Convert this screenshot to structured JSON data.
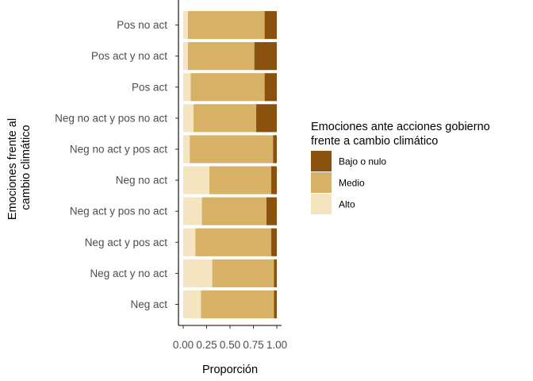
{
  "chart_data": {
    "type": "bar",
    "orientation": "horizontal",
    "stacked": true,
    "xlabel": "Proporción",
    "ylabel_lines": [
      "Emociones frente al",
      "cambio climático"
    ],
    "xlim": [
      0,
      1
    ],
    "xticks": [
      "0.00",
      "0.25",
      "0.50",
      "0.75",
      "1.00"
    ],
    "xtick_values": [
      0,
      0.25,
      0.5,
      0.75,
      1.0
    ],
    "grid": false,
    "legend_position": "right",
    "legend_title_lines": [
      "Emociones ante acciones gobierno",
      "frente a cambio climático"
    ],
    "categories": [
      "Pos no act",
      "Pos act y no act",
      "Pos act",
      "Neg no act y pos no act",
      "Neg no act y pos act",
      "Neg no act",
      "Neg act y pos no act",
      "Neg act y pos act",
      "Neg act y no act",
      "Neg act"
    ],
    "series": [
      {
        "name": "Alto",
        "color": "#f5e4c0",
        "values": [
          0.05,
          0.05,
          0.08,
          0.11,
          0.07,
          0.28,
          0.2,
          0.13,
          0.31,
          0.19
        ]
      },
      {
        "name": "Medio",
        "color": "#d7b266",
        "values": [
          0.82,
          0.71,
          0.79,
          0.67,
          0.89,
          0.66,
          0.69,
          0.81,
          0.66,
          0.78
        ]
      },
      {
        "name": "Bajo o nulo",
        "color": "#8b520f",
        "values": [
          0.13,
          0.24,
          0.13,
          0.22,
          0.04,
          0.06,
          0.11,
          0.06,
          0.03,
          0.03
        ]
      }
    ],
    "legend_order": [
      "Bajo o nulo",
      "Medio",
      "Alto"
    ]
  }
}
